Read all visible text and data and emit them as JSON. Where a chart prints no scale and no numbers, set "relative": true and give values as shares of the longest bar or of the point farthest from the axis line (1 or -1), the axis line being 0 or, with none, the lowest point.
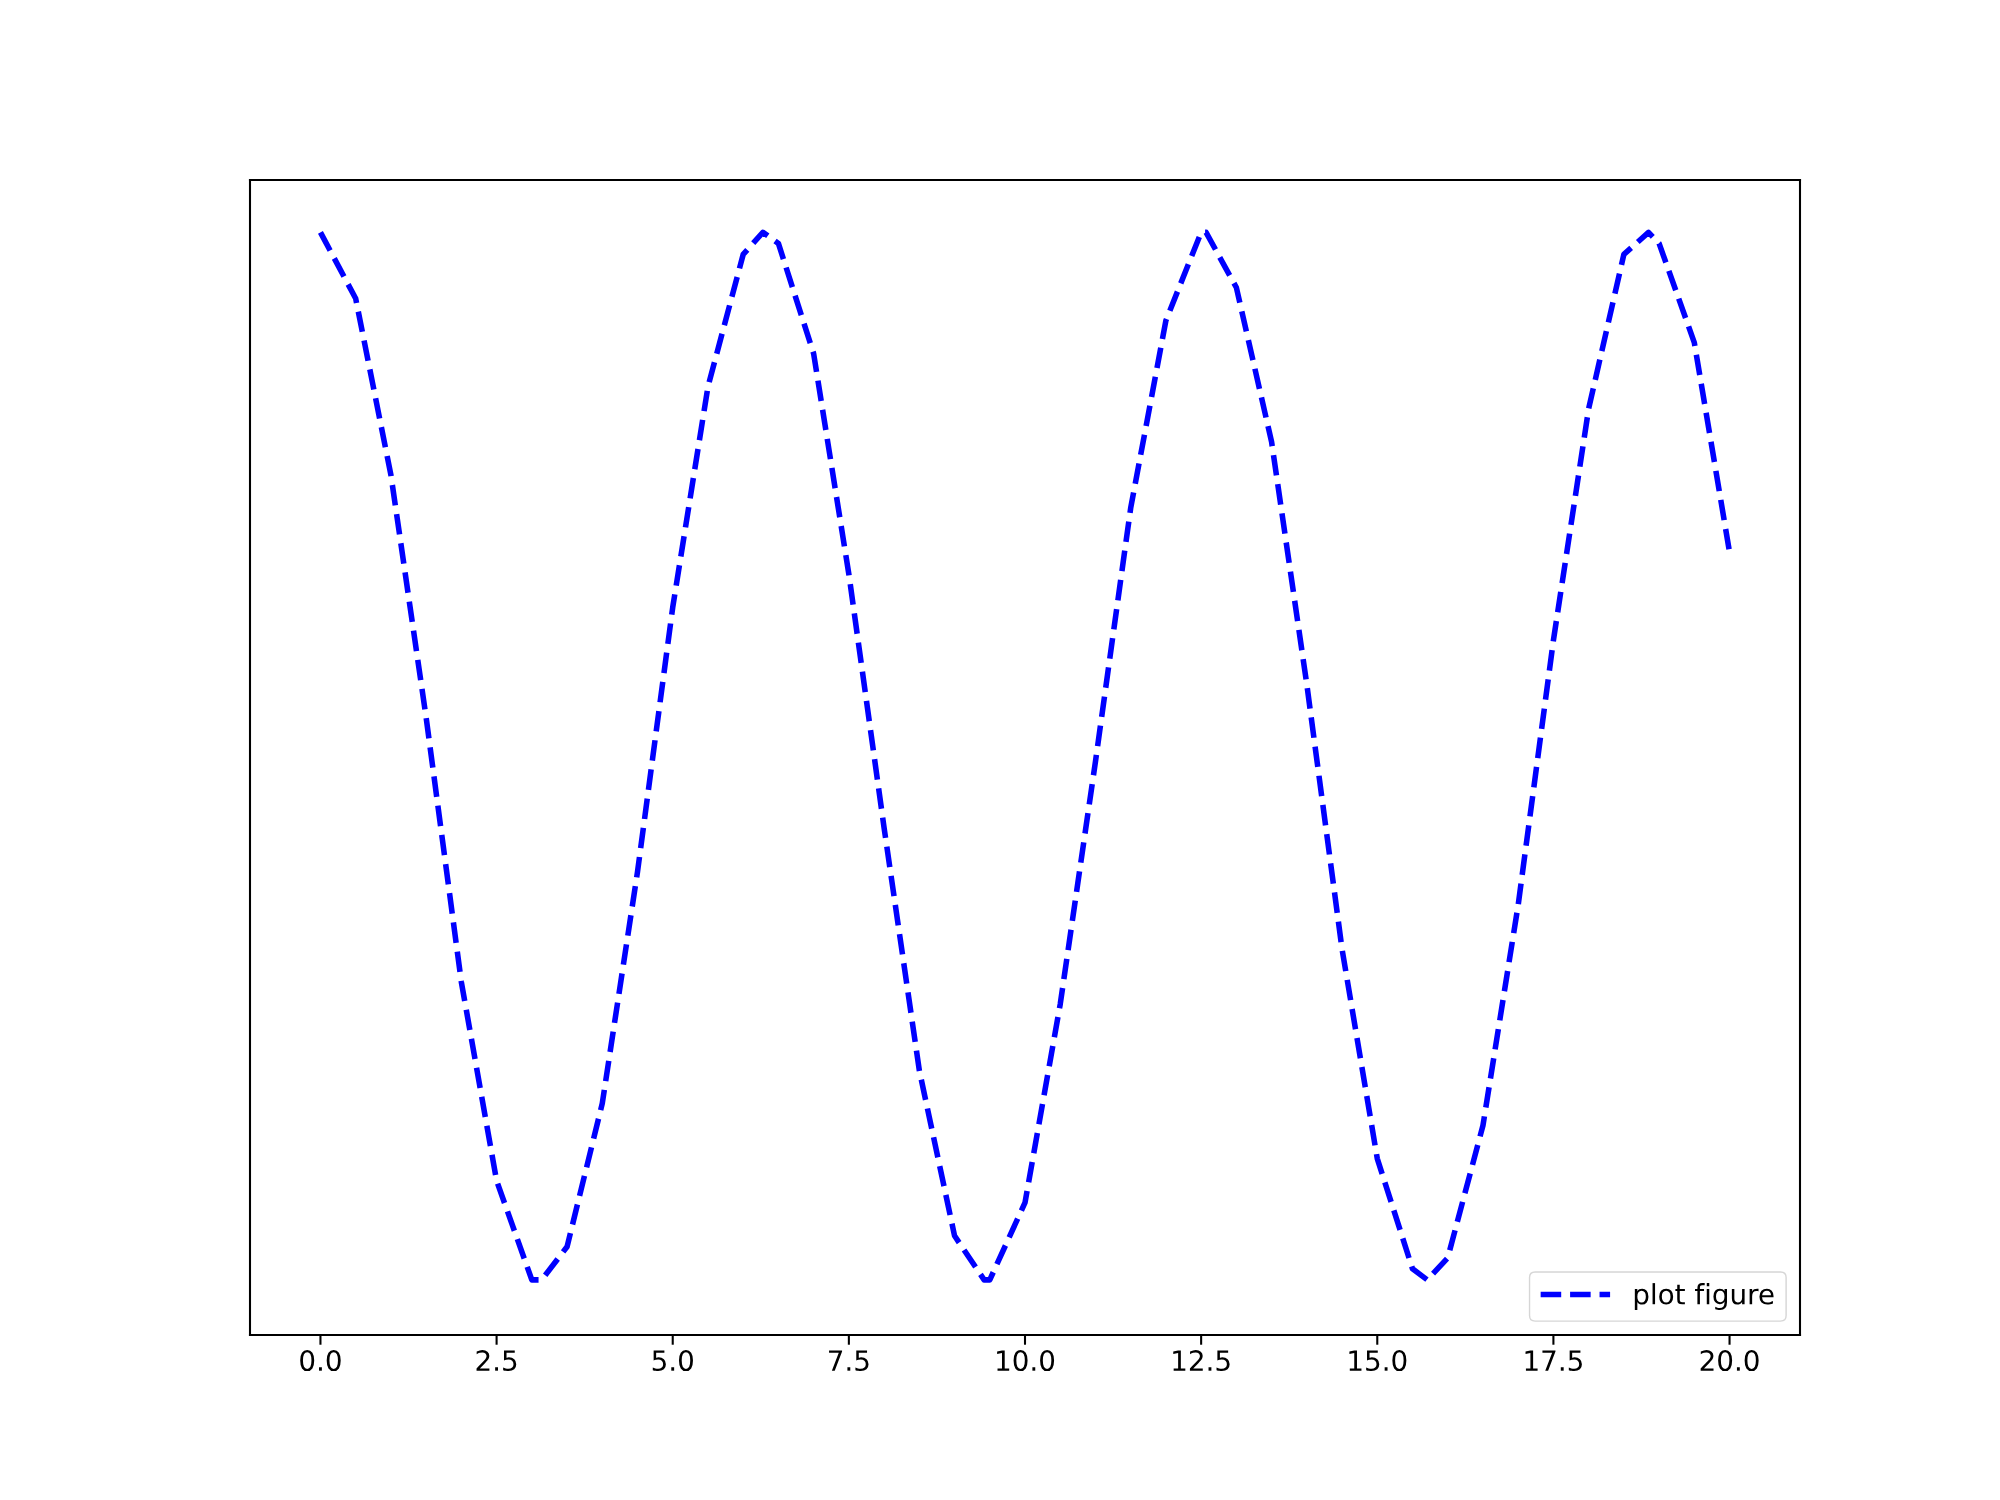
{
  "chart_data": {
    "type": "line",
    "relative": true,
    "line_style": "dashed",
    "marker": "none",
    "legend": "bottom right",
    "grid": false,
    "tick_labels": "x",
    "x": [
      0,
      0.5,
      1,
      1.5,
      2,
      2.5,
      3,
      3.14,
      3.5,
      4,
      4.5,
      5,
      5.5,
      6,
      6.28,
      6.5,
      7,
      7.5,
      8,
      8.5,
      9,
      9.42,
      9.5,
      10,
      10.5,
      11,
      11.5,
      12,
      12.5,
      12.57,
      13,
      13.5,
      14,
      14.5,
      15,
      15.5,
      15.71,
      16,
      16.5,
      17,
      17.5,
      18,
      18.5,
      18.85,
      19,
      19.5,
      20
    ],
    "series": [
      {
        "name": "plot figure",
        "color": "#0000ff",
        "values": [
          1.0,
          0.94,
          0.78,
          0.56,
          0.32,
          0.14,
          0.05,
          0.05,
          0.08,
          0.21,
          0.42,
          0.66,
          0.86,
          0.98,
          1.0,
          0.99,
          0.89,
          0.69,
          0.46,
          0.24,
          0.09,
          0.05,
          0.05,
          0.12,
          0.3,
          0.52,
          0.75,
          0.92,
          1.0,
          1.0,
          0.95,
          0.81,
          0.59,
          0.35,
          0.16,
          0.06,
          0.05,
          0.07,
          0.19,
          0.39,
          0.63,
          0.84,
          0.98,
          1.0,
          0.99,
          0.9,
          0.71
        ]
      }
    ],
    "xlim": [
      -1,
      21
    ],
    "xticks": [
      {
        "value": 0,
        "label": "0.0"
      },
      {
        "value": 2.5,
        "label": "2.5"
      },
      {
        "value": 5,
        "label": "5.0"
      },
      {
        "value": 7.5,
        "label": "7.5"
      },
      {
        "value": 10,
        "label": "10.0"
      },
      {
        "value": 12.5,
        "label": "12.5"
      },
      {
        "value": 15,
        "label": "15.0"
      },
      {
        "value": 17.5,
        "label": "17.5"
      },
      {
        "value": 20,
        "label": "20.0"
      }
    ]
  }
}
